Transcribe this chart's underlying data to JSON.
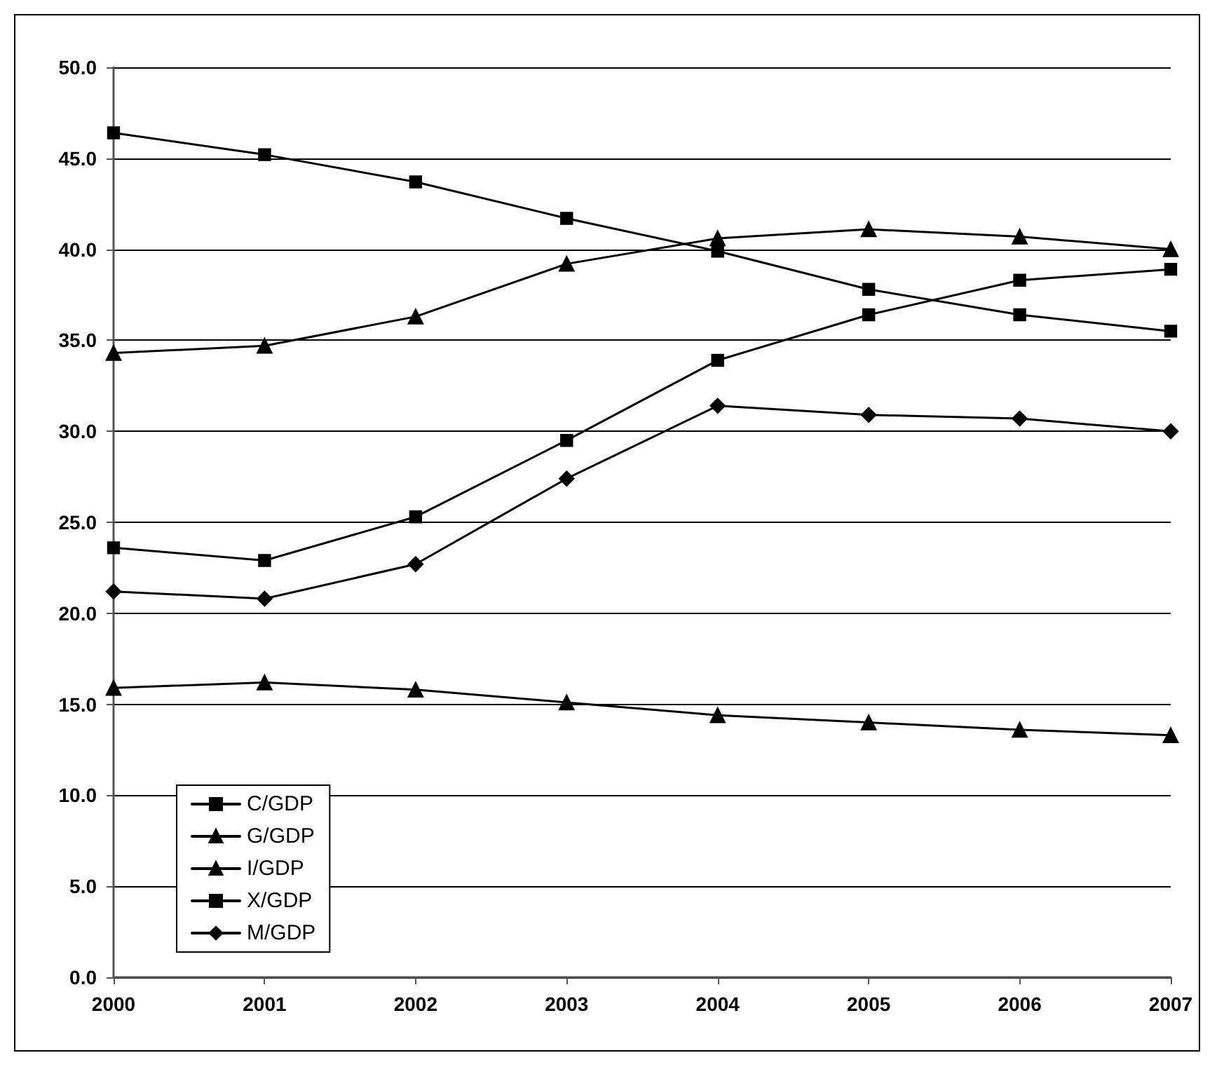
{
  "chart_data": {
    "type": "line",
    "categories": [
      "2000",
      "2001",
      "2002",
      "2003",
      "2004",
      "2005",
      "2006",
      "2007"
    ],
    "series": [
      {
        "name": "C/GDP",
        "color": "#000000",
        "marker": "square",
        "values": [
          46.4,
          45.2,
          43.7,
          41.7,
          39.9,
          37.8,
          36.4,
          35.5
        ]
      },
      {
        "name": "G/GDP",
        "color": "#000000",
        "marker": "triangle",
        "values": [
          15.9,
          16.2,
          15.8,
          15.1,
          14.4,
          14.0,
          13.6,
          13.3
        ]
      },
      {
        "name": "I/GDP",
        "color": "#000000",
        "marker": "triangle",
        "values": [
          34.3,
          34.7,
          36.3,
          39.2,
          40.6,
          41.1,
          40.7,
          40.0
        ]
      },
      {
        "name": "X/GDP",
        "color": "#000000",
        "marker": "square",
        "values": [
          23.6,
          22.9,
          25.3,
          29.5,
          33.9,
          36.4,
          38.3,
          38.9
        ]
      },
      {
        "name": "M/GDP",
        "color": "#000000",
        "marker": "diamond",
        "values": [
          21.2,
          20.8,
          22.7,
          27.4,
          31.4,
          30.9,
          30.7,
          30.0
        ]
      }
    ],
    "ylim": [
      0,
      50
    ],
    "yticks": [
      {
        "value": 0,
        "label": "0.0"
      },
      {
        "value": 5,
        "label": "5.0"
      },
      {
        "value": 10,
        "label": "10.0"
      },
      {
        "value": 15,
        "label": "15.0"
      },
      {
        "value": 20,
        "label": "20.0"
      },
      {
        "value": 25,
        "label": "25.0"
      },
      {
        "value": 30,
        "label": "30.0"
      },
      {
        "value": 35,
        "label": "35.0"
      },
      {
        "value": 40,
        "label": "40.0"
      },
      {
        "value": 45,
        "label": "45.0"
      },
      {
        "value": 50,
        "label": "50.0"
      }
    ],
    "grid": "y",
    "legend": "bottom left",
    "line_style": "solid"
  }
}
